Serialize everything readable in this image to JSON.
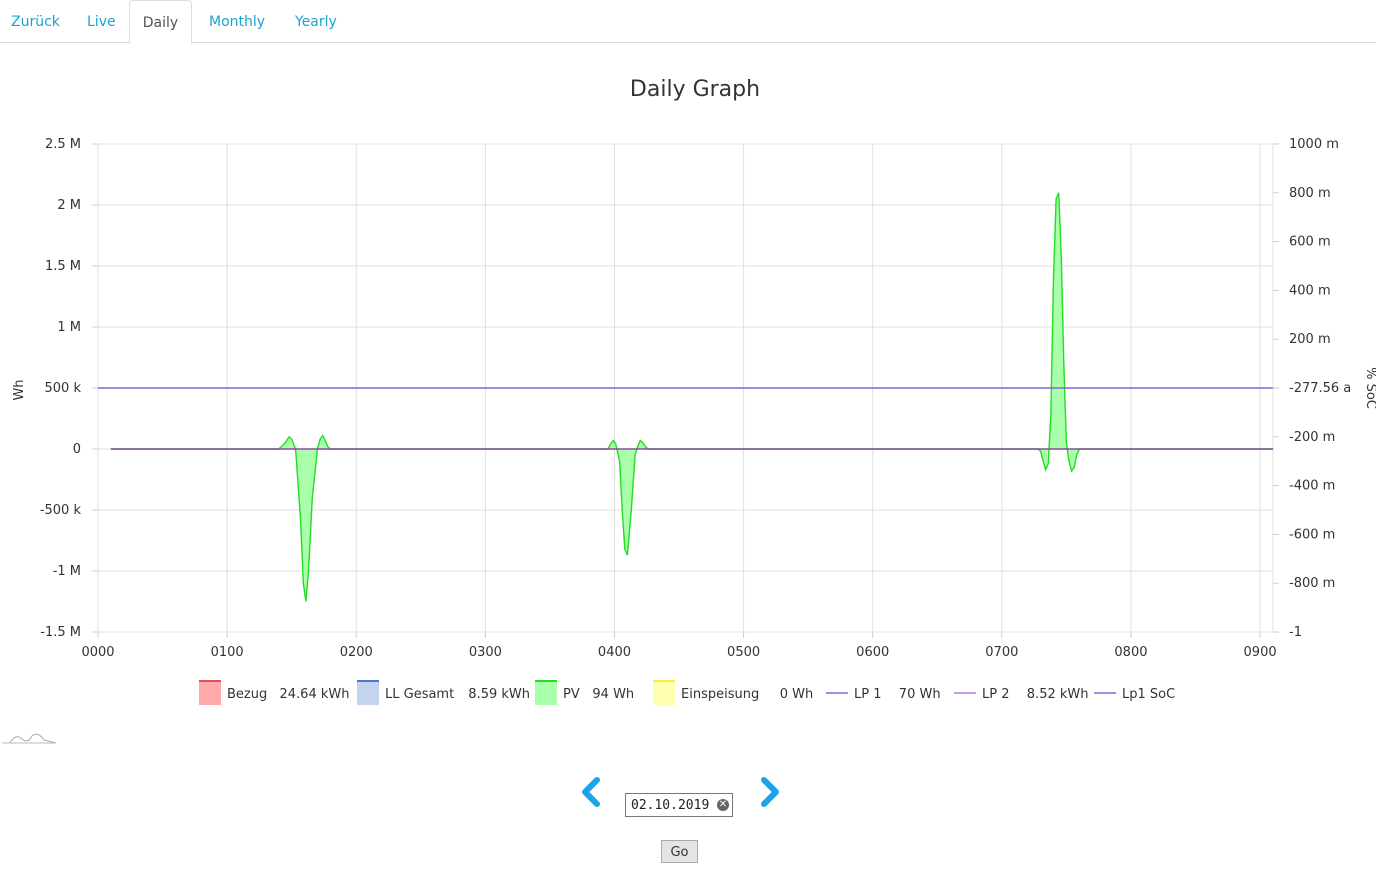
{
  "tabs": [
    {
      "label": "Zurück"
    },
    {
      "label": "Live"
    },
    {
      "label": "Daily",
      "active": true
    },
    {
      "label": "Monthly"
    },
    {
      "label": "Yearly"
    }
  ],
  "date_picker": {
    "value": "02.10.2019",
    "clear_icon": "clear-icon"
  },
  "go_button": {
    "label": "Go"
  },
  "nav": {
    "prev_icon": "chevron-left-icon",
    "next_icon": "chevron-right-icon",
    "accent": "#1aa3e8"
  },
  "chart_data": {
    "type": "area",
    "title": "Daily Graph",
    "ylabel": "Wh",
    "y2label": "% SoC",
    "x_ticks": [
      "0000",
      "0100",
      "0200",
      "0300",
      "0400",
      "0500",
      "0600",
      "0700",
      "0800",
      "0900"
    ],
    "xlim": [
      0,
      910
    ],
    "y_ticks": [
      "2.5 M",
      "2 M",
      "1.5 M",
      "1 M",
      "500 k",
      "0",
      "-500 k",
      "-1 M",
      "-1.5 M"
    ],
    "ylim": [
      -1500000,
      2500000
    ],
    "y2_ticks": [
      "1000 m",
      "800 m",
      "600 m",
      "400 m",
      "200 m",
      "-277.56 a",
      "-200 m",
      "-400 m",
      "-600 m",
      "-800 m",
      "-1"
    ],
    "y2lim": [
      -1,
      1
    ],
    "grid": true,
    "legend_position": "bottom",
    "legend": [
      {
        "name": "Bezug",
        "value": "24.64 kWh",
        "color": "#e05050",
        "fill": "#ffaaaa",
        "marker": "box"
      },
      {
        "name": "LL Gesamt",
        "value": "8.59 kWh",
        "color": "#4a78c8",
        "fill": "#c3d4ee",
        "marker": "box"
      },
      {
        "name": "PV",
        "value": "94 Wh",
        "color": "#22dd22",
        "fill": "#aaffaa",
        "marker": "box"
      },
      {
        "name": "Einspeisung",
        "value": "0 Wh",
        "color": "#ffe94a",
        "fill": "#ffffb0",
        "marker": "box"
      },
      {
        "name": "LP 1",
        "value": "70 Wh",
        "color": "#7c6ad8",
        "marker": "line"
      },
      {
        "name": "LP 2",
        "value": "8.52 kWh",
        "color": "#b07ae0",
        "marker": "line"
      },
      {
        "name": "Lp1 SoC",
        "value": "",
        "color": "#7c6ad8",
        "marker": "line"
      }
    ],
    "series": [
      {
        "name": "PV",
        "color": "#22dd22",
        "fill": "#aaffaa",
        "x": [
          10,
          140,
          145,
          148,
          150,
          153,
          157,
          159,
          161,
          163,
          166,
          170,
          172,
          174,
          176,
          178,
          180,
          395,
          397,
          399,
          401,
          404,
          406,
          408,
          410,
          413,
          416,
          418,
          420,
          422,
          424,
          426,
          728,
          730,
          732,
          734,
          736,
          738,
          740,
          742,
          744,
          746,
          748,
          750,
          752,
          754,
          756,
          758,
          760,
          910
        ],
        "y": [
          0,
          0,
          50000,
          100000,
          80000,
          0,
          -600000,
          -1100000,
          -1250000,
          -1000000,
          -400000,
          0,
          80000,
          110000,
          70000,
          20000,
          0,
          0,
          40000,
          70000,
          40000,
          -100000,
          -500000,
          -820000,
          -870000,
          -500000,
          -50000,
          20000,
          70000,
          50000,
          20000,
          0,
          0,
          -20000,
          -100000,
          -170000,
          -120000,
          300000,
          1400000,
          2050000,
          2100000,
          1600000,
          700000,
          50000,
          -100000,
          -180000,
          -150000,
          -50000,
          0,
          0
        ]
      },
      {
        "name": "LP 1",
        "color": "#7c6ad8",
        "x": [
          0,
          910
        ],
        "y": [
          500000,
          500000
        ]
      },
      {
        "name": "LP 2",
        "color": "#8a4a9a",
        "x": [
          10,
          910
        ],
        "y": [
          0,
          0
        ]
      }
    ]
  }
}
